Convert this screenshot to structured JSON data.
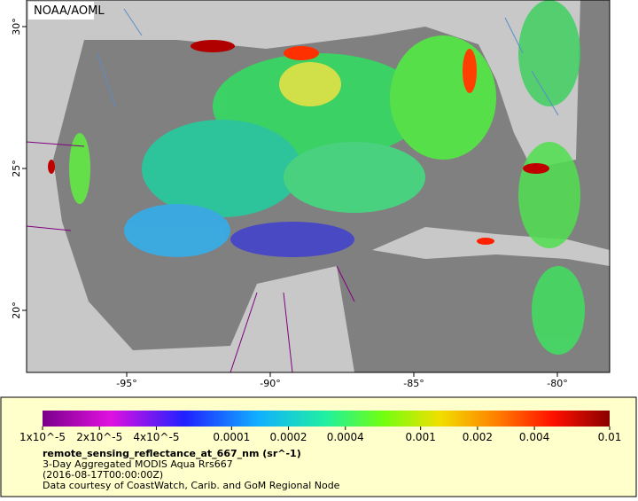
{
  "credit_badge": "NOAA/AOML",
  "map": {
    "lon_ticks": [
      {
        "value": -95,
        "label": "-95°"
      },
      {
        "value": -90,
        "label": "-90°"
      },
      {
        "value": -85,
        "label": "-85°"
      },
      {
        "value": -80,
        "label": "-80°"
      }
    ],
    "lat_ticks": [
      {
        "value": 30,
        "label": "30°"
      },
      {
        "value": 25,
        "label": "25°"
      },
      {
        "value": 20,
        "label": "20°"
      }
    ]
  },
  "colorbar": {
    "scale": "log",
    "range": [
      1e-05,
      0.01
    ],
    "ticks": [
      {
        "value": 1e-05,
        "label": "1x10^-5"
      },
      {
        "value": 2e-05,
        "label": "2x10^-5"
      },
      {
        "value": 4e-05,
        "label": "4x10^-5"
      },
      0.0001,
      0.0002,
      0.0004,
      0.001,
      0.002,
      0.004,
      0.01
    ],
    "variable": "remote_sensing_reflectance_at_667_nm (sr^-1)",
    "description": "3-Day Aggregated MODIS Aqua Rrs667",
    "time": "(2016-08-17T00:00:00Z)",
    "source": "Data courtesy of CoastWatch, Carib. and GoM Regional Node"
  }
}
